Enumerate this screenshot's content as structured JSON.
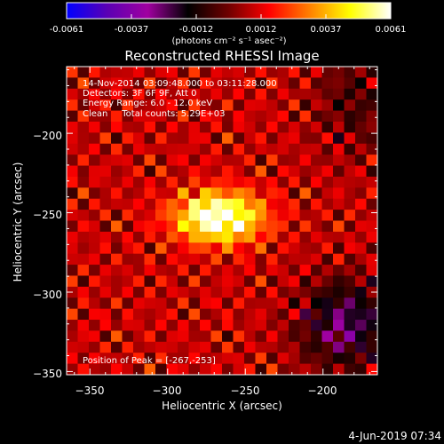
{
  "colorbar": {
    "ticks": [
      "-0.0061",
      "-0.0037",
      "-0.0012",
      "0.0012",
      "0.0037",
      "0.0061"
    ],
    "unit": "(photons cm⁻² s⁻¹ asec⁻²)",
    "range": [
      -0.0061,
      0.0061
    ],
    "colors": [
      "#0000ff",
      "#5a00b4",
      "#a000a0",
      "#000000",
      "#700000",
      "#ff0000",
      "#ff8000",
      "#ffff00",
      "#ffffff"
    ]
  },
  "chart_data": {
    "type": "heatmap",
    "title": "Reconstructed RHESSI Image",
    "xlabel": "Heliocentric X (arcsec)",
    "ylabel": "Heliocentric Y (arcsec)",
    "xlim": [
      -365,
      -165
    ],
    "ylim": [
      -352,
      -158
    ],
    "xticks": [
      -350,
      -300,
      -250,
      -200
    ],
    "yticks": [
      -350,
      -300,
      -250,
      -200
    ],
    "xtick_labels": [
      "−350",
      "−300",
      "−250",
      "−200"
    ],
    "ytick_labels": [
      "−350",
      "−300",
      "−250",
      "−200"
    ],
    "peak": {
      "x": -267,
      "y": -253
    },
    "annotations": [
      "14-Nov-2014 03:09:48.000 to 03:11:28.000",
      "Detectors: 3F 6F 9F, Att 0",
      "Energy Range: 6.0 - 12.0 keV",
      "Clean     Total counts: 5.29E+03",
      "Position of Peak = [-267,-253]"
    ],
    "grid": false
  },
  "footer": {
    "date": "4-Jun-2019 07:34"
  }
}
